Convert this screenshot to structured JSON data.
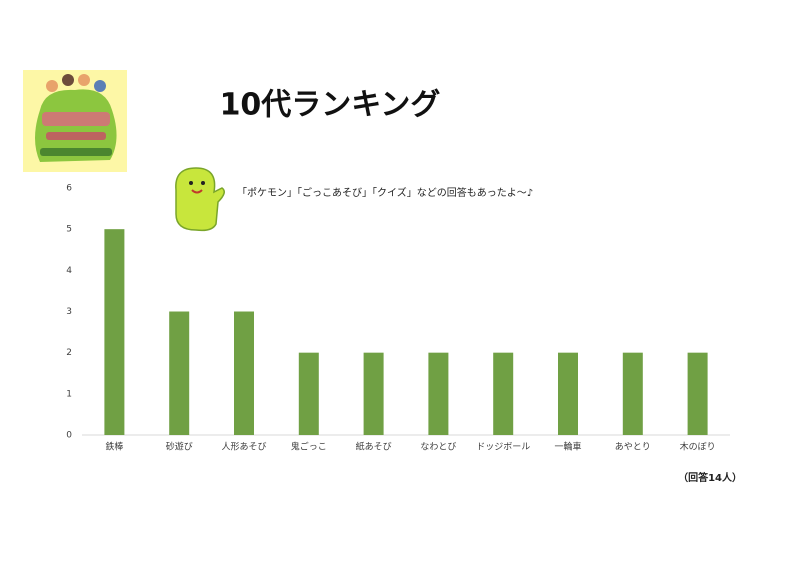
{
  "chart_data": {
    "type": "bar",
    "title": "10代ランキング",
    "annotation": "「ポケモン」「ごっこあそび」「クイズ」などの回答もあったよ〜♪",
    "note": "（回答14人）",
    "categories": [
      "鉄棒",
      "砂遊び",
      "人形あそび",
      "鬼ごっこ",
      "紙あそび",
      "なわとび",
      "ドッジボール",
      "一輪車",
      "あやとり",
      "木のぼり"
    ],
    "values": [
      5,
      3,
      3,
      2,
      2,
      2,
      2,
      2,
      2,
      2
    ],
    "color": "#70a044",
    "ylim": [
      0,
      6
    ],
    "yticks": [
      0,
      1,
      2,
      3,
      4,
      5,
      6
    ],
    "grid": false
  }
}
